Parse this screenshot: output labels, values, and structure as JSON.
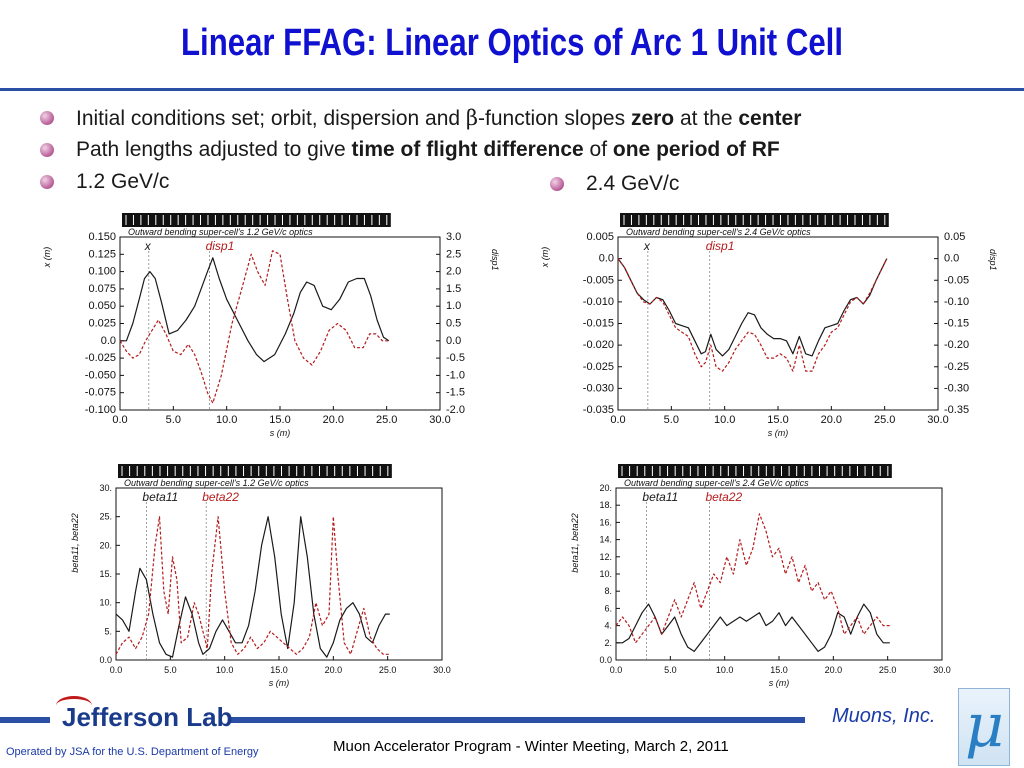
{
  "slide": {
    "title": "Linear FFAG: Linear Optics of Arc 1 Unit Cell",
    "bullets": [
      {
        "pre": "Initial conditions set; orbit, dispersion and ",
        "beta": "β",
        "mid": "-function slopes ",
        "b1": "zero",
        "mid2": " at the ",
        "b2": "center"
      },
      {
        "pre": "Path lengths adjusted to give ",
        "b1": "time of flight difference",
        "mid": " of ",
        "b2": "one period of RF"
      }
    ],
    "label_left": "1.2 GeV/c",
    "label_right": "2.4 GeV/c"
  },
  "footer": {
    "logo_text": "Jefferson Lab",
    "operated": "Operated by JSA for the U.S. Department of Energy",
    "meeting": "Muon Accelerator Program - Winter Meeting, March 2, 2011",
    "company": "Muons, Inc.",
    "mu_glyph": "μ"
  },
  "colors": {
    "solid": "#1a1a1a",
    "dashed": "#b51c1c",
    "title": "#1010d0",
    "rule": "#2b4fa5"
  },
  "chart_data": [
    {
      "type": "line",
      "title": "Outward bending super-cell's 1.2 GeV/c optics",
      "xlabel": "s (m)",
      "ylabel": "x (m)",
      "y2label": "disp1",
      "xlim": [
        0,
        30
      ],
      "ylim": [
        -0.1,
        0.15
      ],
      "y2lim": [
        -2.0,
        3.0
      ],
      "xticks": [
        "0.0",
        "5.0",
        "10.0",
        "15.0",
        "20.0",
        "25.0",
        "30.0"
      ],
      "yticks": [
        "-0.100",
        "-0.075",
        "-0.050",
        "-0.025",
        "0.0",
        "0.025",
        "0.050",
        "0.075",
        "0.100",
        "0.125",
        "0.150"
      ],
      "y2ticks": [
        "-2.0",
        "-1.5",
        "-1.0",
        "-0.5",
        "0.0",
        "0.5",
        "1.0",
        "1.5",
        "2.0",
        "2.5",
        "3.0"
      ],
      "markers": [
        {
          "label": "x",
          "s": 2.7,
          "color": "#1a1a1a"
        },
        {
          "label": "disp1",
          "s": 8.4,
          "color": "#b51c1c"
        }
      ],
      "series": [
        {
          "name": "x",
          "axis": "left",
          "style": "solid",
          "x": [
            0,
            0.6,
            1.2,
            1.8,
            2.3,
            2.8,
            3.3,
            3.9,
            4.6,
            5.4,
            6.2,
            7.0,
            7.6,
            8.2,
            8.7,
            9.3,
            10.0,
            11.0,
            12.0,
            12.8,
            13.5,
            14.5,
            15.5,
            16.3,
            16.9,
            17.5,
            18.2,
            19.0,
            19.8,
            20.6,
            21.4,
            22.2,
            22.9,
            23.5,
            24.1,
            24.7,
            25.2
          ],
          "y": [
            0.0,
            0.0,
            0.025,
            0.06,
            0.09,
            0.1,
            0.09,
            0.055,
            0.01,
            0.015,
            0.03,
            0.05,
            0.075,
            0.1,
            0.12,
            0.09,
            0.06,
            0.03,
            0.0,
            -0.02,
            -0.03,
            -0.02,
            0.01,
            0.04,
            0.07,
            0.085,
            0.08,
            0.05,
            0.045,
            0.06,
            0.085,
            0.09,
            0.09,
            0.065,
            0.03,
            0.005,
            0.0
          ]
        },
        {
          "name": "disp1",
          "axis": "right",
          "style": "dashed",
          "x": [
            0,
            0.6,
            1.2,
            1.8,
            2.4,
            3.0,
            3.6,
            4.3,
            5.0,
            5.7,
            6.4,
            7.0,
            7.6,
            8.2,
            8.7,
            9.5,
            10.5,
            11.5,
            12.3,
            12.9,
            13.6,
            14.3,
            15.0,
            15.7,
            16.4,
            17.2,
            18.0,
            18.8,
            19.6,
            20.4,
            21.2,
            22.0,
            22.8,
            23.4,
            24.0,
            24.6,
            25.2
          ],
          "y": [
            0.0,
            -0.3,
            -0.5,
            -0.4,
            0.0,
            0.3,
            0.6,
            0.2,
            -0.3,
            -0.4,
            -0.1,
            -0.4,
            -0.9,
            -1.5,
            -1.8,
            -1.0,
            0.5,
            1.6,
            2.5,
            2.0,
            1.6,
            2.6,
            2.5,
            1.2,
            0.0,
            -0.5,
            -0.7,
            -0.3,
            0.3,
            0.5,
            0.3,
            -0.2,
            -0.2,
            0.2,
            0.2,
            0.0,
            0.0
          ]
        }
      ]
    },
    {
      "type": "line",
      "title": "Outward bending super-cell's 2.4 GeV/c optics",
      "xlabel": "s (m)",
      "ylabel": "x (m)",
      "y2label": "disp1",
      "xlim": [
        0,
        30
      ],
      "ylim": [
        -0.035,
        0.005
      ],
      "y2lim": [
        -0.35,
        0.05
      ],
      "xticks": [
        "0.0",
        "5.0",
        "10.0",
        "15.0",
        "20.0",
        "25.0",
        "30.0"
      ],
      "yticks": [
        "-0.035",
        "-0.030",
        "-0.025",
        "-0.020",
        "-0.015",
        "-0.010",
        "-0.005",
        "0.0",
        "0.005"
      ],
      "y2ticks": [
        "-0.35",
        "-0.30",
        "-0.25",
        "-0.20",
        "-0.15",
        "-0.10",
        "-0.05",
        "0.0",
        "0.05"
      ],
      "markers": [
        {
          "label": "x",
          "s": 2.8,
          "color": "#1a1a1a"
        },
        {
          "label": "disp1",
          "s": 8.6,
          "color": "#b51c1c"
        }
      ],
      "series": [
        {
          "name": "x",
          "axis": "left",
          "style": "solid",
          "x": [
            0,
            0.6,
            1.2,
            1.8,
            2.4,
            3.0,
            3.6,
            4.2,
            4.8,
            5.4,
            6.0,
            6.6,
            7.2,
            7.8,
            8.2,
            8.7,
            9.2,
            9.8,
            10.4,
            11.0,
            11.6,
            12.2,
            12.8,
            13.4,
            14.0,
            14.6,
            15.2,
            15.8,
            16.4,
            17.0,
            17.6,
            18.2,
            18.8,
            19.4,
            20.0,
            20.6,
            21.2,
            21.8,
            22.4,
            23.0,
            23.6,
            24.2,
            24.8,
            25.2
          ],
          "y": [
            0.0,
            -0.002,
            -0.005,
            -0.008,
            -0.0095,
            -0.0105,
            -0.009,
            -0.0095,
            -0.012,
            -0.015,
            -0.0155,
            -0.016,
            -0.019,
            -0.022,
            -0.0215,
            -0.0175,
            -0.021,
            -0.0225,
            -0.021,
            -0.018,
            -0.015,
            -0.0125,
            -0.013,
            -0.016,
            -0.0175,
            -0.0185,
            -0.0185,
            -0.019,
            -0.022,
            -0.018,
            -0.022,
            -0.0225,
            -0.019,
            -0.016,
            -0.0155,
            -0.015,
            -0.012,
            -0.0095,
            -0.009,
            -0.0105,
            -0.0085,
            -0.005,
            -0.002,
            0.0
          ]
        },
        {
          "name": "disp1",
          "axis": "right",
          "style": "dashed",
          "x": [
            0,
            0.6,
            1.2,
            1.8,
            2.4,
            3.0,
            3.6,
            4.2,
            4.8,
            5.4,
            6.0,
            6.6,
            7.2,
            7.8,
            8.2,
            8.7,
            9.2,
            9.8,
            10.4,
            11.0,
            11.6,
            12.2,
            12.8,
            13.4,
            14.0,
            14.6,
            15.2,
            15.8,
            16.4,
            17.0,
            17.6,
            18.2,
            18.8,
            19.4,
            20.0,
            20.6,
            21.2,
            21.8,
            22.4,
            23.0,
            23.6,
            24.2,
            24.8,
            25.2
          ],
          "y": [
            0.0,
            -0.02,
            -0.05,
            -0.08,
            -0.1,
            -0.105,
            -0.09,
            -0.1,
            -0.13,
            -0.16,
            -0.17,
            -0.18,
            -0.22,
            -0.25,
            -0.24,
            -0.2,
            -0.25,
            -0.26,
            -0.24,
            -0.21,
            -0.19,
            -0.17,
            -0.175,
            -0.2,
            -0.23,
            -0.23,
            -0.22,
            -0.23,
            -0.26,
            -0.2,
            -0.26,
            -0.26,
            -0.22,
            -0.2,
            -0.17,
            -0.16,
            -0.13,
            -0.1,
            -0.09,
            -0.105,
            -0.08,
            -0.05,
            -0.02,
            0.0
          ]
        }
      ]
    },
    {
      "type": "line",
      "title": "Outward bending super-cell's 1.2 GeV/c optics",
      "xlabel": "s (m)",
      "ylabel": "beta11, beta22",
      "xlim": [
        0,
        30
      ],
      "ylim": [
        0,
        30
      ],
      "xticks": [
        "0.0",
        "5.0",
        "10.0",
        "15.0",
        "20.0",
        "25.0",
        "30.0"
      ],
      "yticks": [
        "0.0",
        "5.",
        "10.",
        "15.",
        "20.",
        "25.",
        "30."
      ],
      "markers": [
        {
          "label": "beta11",
          "s": 2.8,
          "color": "#1a1a1a"
        },
        {
          "label": "beta22",
          "s": 8.3,
          "color": "#b51c1c"
        }
      ],
      "series": [
        {
          "name": "beta11",
          "axis": "left",
          "style": "solid",
          "x": [
            0,
            0.6,
            1.2,
            1.8,
            2.2,
            2.8,
            3.4,
            4.0,
            4.6,
            5.2,
            5.8,
            6.4,
            7.0,
            7.6,
            8.0,
            8.6,
            9.2,
            9.8,
            10.4,
            11.0,
            11.6,
            12.2,
            12.8,
            13.4,
            14.0,
            14.6,
            15.2,
            15.8,
            16.4,
            17.0,
            17.6,
            18.2,
            18.8,
            19.4,
            20.0,
            20.6,
            21.2,
            21.8,
            22.4,
            23.0,
            23.6,
            24.2,
            24.8,
            25.2
          ],
          "y": [
            8,
            7,
            5,
            12,
            16,
            14,
            8,
            3,
            1,
            0.5,
            6,
            11,
            8,
            3,
            1,
            2,
            5,
            7,
            5,
            3,
            3,
            6,
            12,
            20,
            25,
            18,
            8,
            2,
            10,
            25,
            18,
            8,
            2,
            0.5,
            3,
            7,
            9,
            10,
            8,
            4,
            3,
            6,
            8,
            8
          ]
        },
        {
          "name": "beta22",
          "axis": "left",
          "style": "dashed",
          "x": [
            0,
            0.6,
            1.2,
            1.8,
            2.4,
            3.0,
            3.6,
            4.0,
            4.4,
            4.8,
            5.2,
            5.6,
            6.0,
            6.6,
            7.2,
            7.6,
            8.0,
            8.4,
            8.8,
            9.4,
            10.0,
            10.6,
            11.2,
            11.8,
            12.4,
            13.0,
            13.6,
            14.2,
            14.8,
            15.4,
            16.0,
            16.6,
            17.2,
            17.8,
            18.4,
            19.0,
            19.6,
            20.0,
            20.4,
            21.0,
            21.6,
            22.2,
            22.8,
            23.4,
            24.0,
            24.6,
            25.2
          ],
          "y": [
            1,
            3,
            4,
            2,
            4,
            8,
            20,
            25,
            12,
            8,
            18,
            14,
            3,
            4,
            10,
            8,
            5,
            2,
            15,
            25,
            12,
            3,
            1,
            2,
            4,
            2,
            3,
            5,
            4,
            3,
            2,
            1,
            2,
            4,
            10,
            6,
            8,
            25,
            15,
            3,
            1,
            5,
            9,
            4,
            2,
            1,
            1
          ]
        }
      ]
    },
    {
      "type": "line",
      "title": "Outward bending super-cell's 2.4 GeV/c optics",
      "xlabel": "s (m)",
      "ylabel": "beta11, beta22",
      "xlim": [
        0,
        30
      ],
      "ylim": [
        0,
        20
      ],
      "xticks": [
        "0.0",
        "5.0",
        "10.0",
        "15.0",
        "20.0",
        "25.0",
        "30.0"
      ],
      "yticks": [
        "0.0",
        "2.",
        "4.",
        "6.",
        "8.",
        "10.",
        "12.",
        "14.",
        "16.",
        "18.",
        "20."
      ],
      "markers": [
        {
          "label": "beta11",
          "s": 2.8,
          "color": "#1a1a1a"
        },
        {
          "label": "beta22",
          "s": 8.6,
          "color": "#b51c1c"
        }
      ],
      "series": [
        {
          "name": "beta11",
          "axis": "left",
          "style": "solid",
          "x": [
            0,
            0.6,
            1.2,
            1.8,
            2.4,
            3.0,
            3.6,
            4.2,
            4.8,
            5.4,
            6.0,
            6.6,
            7.2,
            7.8,
            8.4,
            9.0,
            9.6,
            10.2,
            10.8,
            11.4,
            12.0,
            12.6,
            13.2,
            13.8,
            14.4,
            15.0,
            15.6,
            16.2,
            16.8,
            17.4,
            18.0,
            18.6,
            19.2,
            19.8,
            20.4,
            21.0,
            21.6,
            22.2,
            22.8,
            23.4,
            24.0,
            24.6,
            25.2
          ],
          "y": [
            2,
            2,
            2.5,
            4,
            5.5,
            6.5,
            5,
            3,
            4,
            5,
            3,
            1.5,
            1,
            2,
            3,
            4,
            5,
            4,
            4.5,
            5,
            4.5,
            5,
            5.5,
            4,
            4.5,
            5.5,
            4,
            5,
            4,
            3,
            2,
            1,
            1.5,
            3,
            5.5,
            5,
            3,
            5,
            6.5,
            5.5,
            3,
            2,
            2
          ]
        },
        {
          "name": "beta22",
          "axis": "left",
          "style": "dashed",
          "x": [
            0,
            0.6,
            1.2,
            1.8,
            2.4,
            3.0,
            3.6,
            4.2,
            4.8,
            5.4,
            6.0,
            6.6,
            7.2,
            7.8,
            8.4,
            9.0,
            9.6,
            10.2,
            10.8,
            11.4,
            12.0,
            12.6,
            13.2,
            13.8,
            14.4,
            15.0,
            15.6,
            16.2,
            16.8,
            17.4,
            18.0,
            18.6,
            19.2,
            19.8,
            20.4,
            21.0,
            21.6,
            22.2,
            22.8,
            23.4,
            24.0,
            24.6,
            25.2
          ],
          "y": [
            4,
            5,
            4,
            2,
            3,
            4,
            5,
            3,
            5,
            7,
            5,
            7,
            9,
            6,
            8,
            10,
            9,
            12,
            10,
            14,
            11,
            13,
            17,
            15,
            12,
            13,
            10,
            12,
            9,
            11,
            8,
            9,
            7,
            8,
            6,
            3,
            4,
            5,
            3,
            4,
            5,
            4,
            4
          ]
        }
      ]
    }
  ]
}
